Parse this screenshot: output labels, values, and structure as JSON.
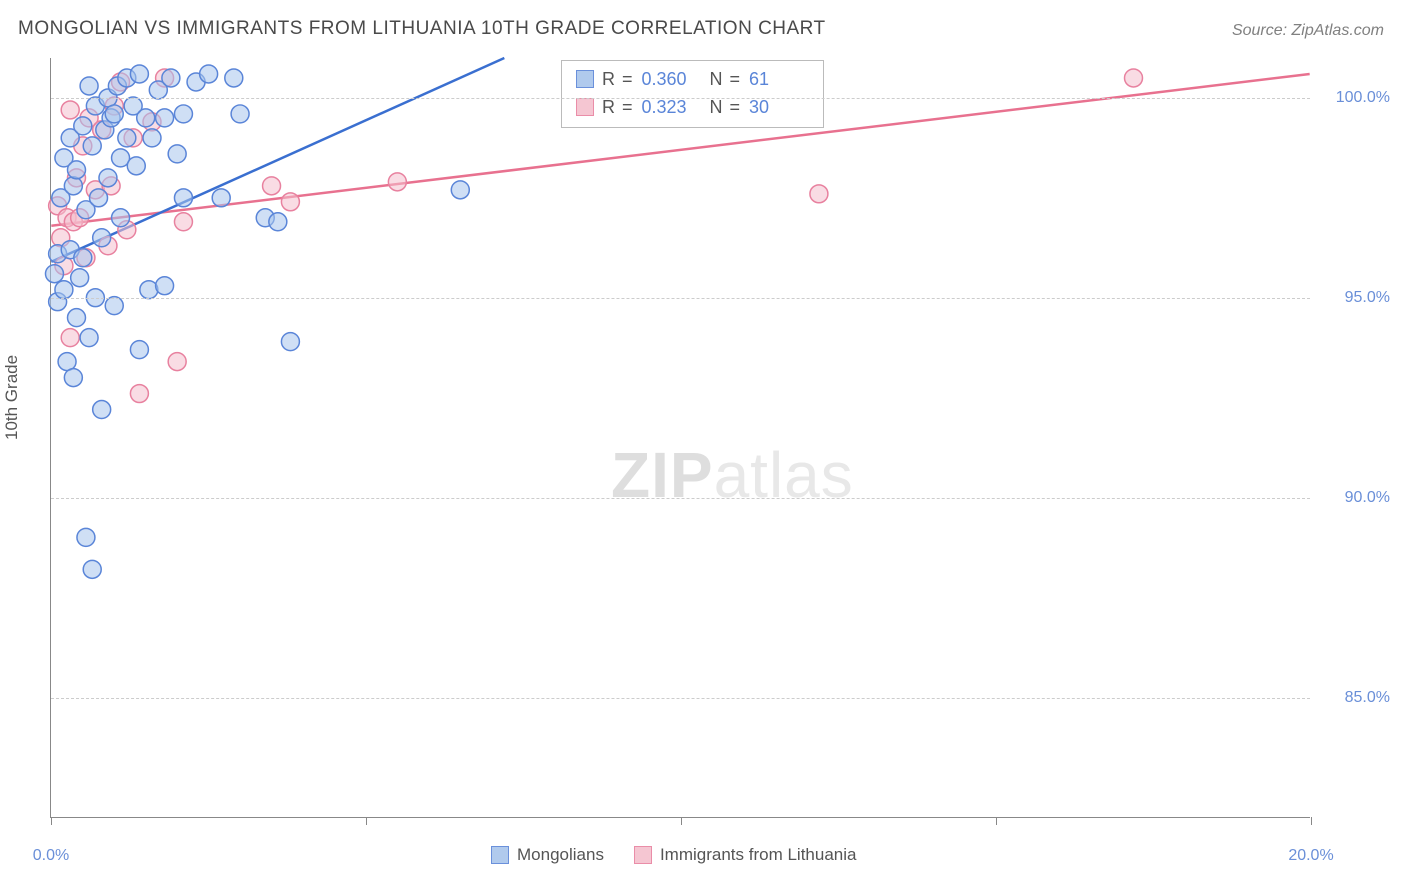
{
  "title": "MONGOLIAN VS IMMIGRANTS FROM LITHUANIA 10TH GRADE CORRELATION CHART",
  "source": "Source: ZipAtlas.com",
  "watermark_bold": "ZIP",
  "watermark_rest": "atlas",
  "chart": {
    "type": "scatter",
    "ylabel": "10th Grade",
    "xlim": [
      0,
      20
    ],
    "ylim": [
      82,
      101
    ],
    "y_ticks": [
      85.0,
      90.0,
      95.0,
      100.0
    ],
    "y_tick_labels": [
      "85.0%",
      "90.0%",
      "95.0%",
      "100.0%"
    ],
    "x_ticks": [
      0,
      5,
      10,
      15,
      20
    ],
    "x_tick_labels": [
      "0.0%",
      "",
      "",
      "",
      "20.0%"
    ],
    "background_color": "#ffffff",
    "grid_color": "#cccccc",
    "axis_color": "#888888",
    "tick_label_color": "#6a8fd8",
    "marker_radius": 9,
    "marker_stroke_width": 1.5,
    "series": [
      {
        "name": "Mongolians",
        "fill": "#a8c5ec",
        "stroke": "#5a85d8",
        "fill_opacity": 0.55,
        "R": "0.360",
        "N": "61",
        "trend": {
          "x1": 0,
          "y1": 95.9,
          "x2": 7.2,
          "y2": 101.0,
          "stroke": "#3a6fd0",
          "width": 2.5
        },
        "points": [
          [
            0.05,
            95.6
          ],
          [
            0.1,
            96.1
          ],
          [
            0.1,
            94.9
          ],
          [
            0.15,
            97.5
          ],
          [
            0.2,
            95.2
          ],
          [
            0.2,
            98.5
          ],
          [
            0.25,
            93.4
          ],
          [
            0.3,
            96.2
          ],
          [
            0.3,
            99.0
          ],
          [
            0.35,
            93.0
          ],
          [
            0.35,
            97.8
          ],
          [
            0.4,
            94.5
          ],
          [
            0.4,
            98.2
          ],
          [
            0.45,
            95.5
          ],
          [
            0.5,
            99.3
          ],
          [
            0.5,
            96.0
          ],
          [
            0.55,
            97.2
          ],
          [
            0.6,
            94.0
          ],
          [
            0.6,
            100.3
          ],
          [
            0.65,
            98.8
          ],
          [
            0.7,
            99.8
          ],
          [
            0.7,
            95.0
          ],
          [
            0.75,
            97.5
          ],
          [
            0.8,
            96.5
          ],
          [
            0.85,
            99.2
          ],
          [
            0.9,
            100.0
          ],
          [
            0.9,
            98.0
          ],
          [
            0.95,
            99.5
          ],
          [
            1.0,
            94.8
          ],
          [
            1.0,
            99.6
          ],
          [
            1.05,
            100.3
          ],
          [
            1.1,
            97.0
          ],
          [
            1.1,
            98.5
          ],
          [
            1.2,
            99.0
          ],
          [
            1.2,
            100.5
          ],
          [
            1.3,
            99.8
          ],
          [
            1.35,
            98.3
          ],
          [
            1.4,
            93.7
          ],
          [
            1.4,
            100.6
          ],
          [
            1.5,
            99.5
          ],
          [
            1.55,
            95.2
          ],
          [
            1.6,
            99.0
          ],
          [
            1.7,
            100.2
          ],
          [
            1.8,
            95.3
          ],
          [
            1.8,
            99.5
          ],
          [
            1.9,
            100.5
          ],
          [
            2.0,
            98.6
          ],
          [
            2.1,
            97.5
          ],
          [
            2.1,
            99.6
          ],
          [
            2.3,
            100.4
          ],
          [
            2.5,
            100.6
          ],
          [
            2.7,
            97.5
          ],
          [
            2.9,
            100.5
          ],
          [
            3.0,
            99.6
          ],
          [
            3.4,
            97.0
          ],
          [
            3.6,
            96.9
          ],
          [
            3.8,
            93.9
          ],
          [
            0.55,
            89.0
          ],
          [
            0.65,
            88.2
          ],
          [
            0.8,
            92.2
          ],
          [
            6.5,
            97.7
          ]
        ]
      },
      {
        "name": "Immigrants from Lithuania",
        "fill": "#f4c0ce",
        "stroke": "#e8819f",
        "fill_opacity": 0.55,
        "R": "0.323",
        "N": "30",
        "trend": {
          "x1": 0,
          "y1": 96.8,
          "x2": 20,
          "y2": 100.6,
          "stroke": "#e8718f",
          "width": 2.5
        },
        "points": [
          [
            0.1,
            97.3
          ],
          [
            0.15,
            96.5
          ],
          [
            0.2,
            95.8
          ],
          [
            0.25,
            97.0
          ],
          [
            0.3,
            94.0
          ],
          [
            0.3,
            99.7
          ],
          [
            0.35,
            96.9
          ],
          [
            0.4,
            98.0
          ],
          [
            0.45,
            97.0
          ],
          [
            0.5,
            98.8
          ],
          [
            0.55,
            96.0
          ],
          [
            0.6,
            99.5
          ],
          [
            0.7,
            97.7
          ],
          [
            0.8,
            99.2
          ],
          [
            0.9,
            96.3
          ],
          [
            0.95,
            97.8
          ],
          [
            1.0,
            99.8
          ],
          [
            1.1,
            100.4
          ],
          [
            1.2,
            96.7
          ],
          [
            1.3,
            99.0
          ],
          [
            1.4,
            92.6
          ],
          [
            1.6,
            99.4
          ],
          [
            1.8,
            100.5
          ],
          [
            2.0,
            93.4
          ],
          [
            2.1,
            96.9
          ],
          [
            3.5,
            97.8
          ],
          [
            3.8,
            97.4
          ],
          [
            5.5,
            97.9
          ],
          [
            12.2,
            97.6
          ],
          [
            17.2,
            100.5
          ]
        ]
      }
    ],
    "stats_box": {
      "r_label": "R =",
      "n_label": "N ="
    },
    "legend": {
      "series1_label": "Mongolians",
      "series2_label": "Immigrants from Lithuania"
    }
  }
}
